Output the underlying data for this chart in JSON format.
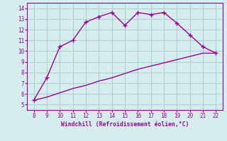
{
  "x_upper": [
    8,
    9,
    10,
    11,
    12,
    13,
    14,
    15,
    16,
    17,
    18,
    19,
    20,
    21,
    22
  ],
  "y_upper": [
    5.4,
    7.5,
    10.4,
    11.0,
    12.7,
    13.2,
    13.6,
    12.4,
    13.6,
    13.4,
    13.6,
    12.6,
    11.5,
    10.4,
    9.8
  ],
  "x_lower": [
    8,
    9,
    10,
    11,
    12,
    13,
    14,
    15,
    16,
    17,
    18,
    19,
    20,
    21,
    22
  ],
  "y_lower": [
    5.4,
    5.7,
    6.1,
    6.5,
    6.8,
    7.2,
    7.5,
    7.9,
    8.3,
    8.6,
    8.9,
    9.2,
    9.5,
    9.8,
    9.8
  ],
  "line_color": "#990099",
  "bg_color": "#d5eeed",
  "grid_color": "#b0d0d0",
  "xlabel": "Windchill (Refroidissement éolien,°C)",
  "xlim": [
    7.5,
    22.5
  ],
  "ylim": [
    4.5,
    14.5
  ],
  "xticks": [
    8,
    9,
    10,
    11,
    12,
    13,
    14,
    15,
    16,
    17,
    18,
    19,
    20,
    21,
    22
  ],
  "yticks": [
    5,
    6,
    7,
    8,
    9,
    10,
    11,
    12,
    13,
    14
  ],
  "marker_upper": "+",
  "markersize_upper": 4,
  "linewidth": 1.0
}
